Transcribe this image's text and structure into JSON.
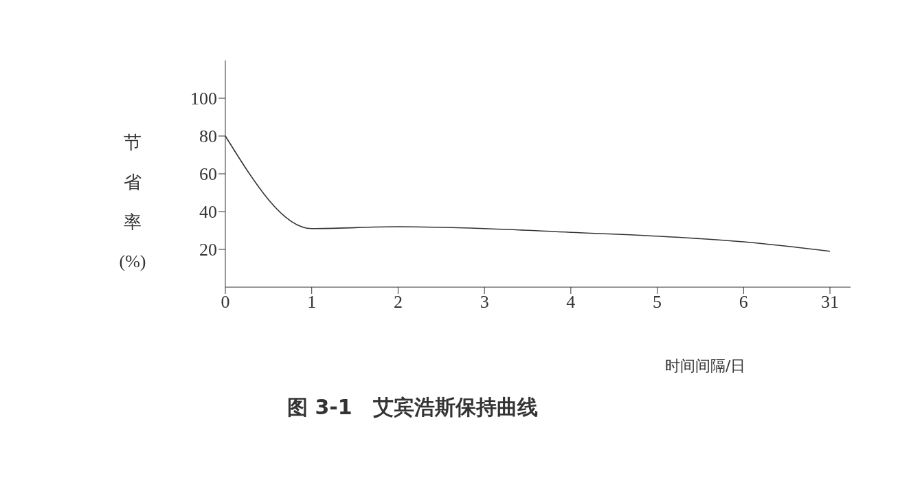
{
  "chart_data": {
    "type": "line",
    "title": "图 3-1　艾宾浩斯保持曲线",
    "xlabel": "时间间隔/日",
    "ylabel": "节省率 (%)",
    "categories": [
      "0",
      "1",
      "2",
      "3",
      "4",
      "5",
      "6",
      "31"
    ],
    "series": [
      {
        "color": "#333333",
        "values": [
          80,
          31,
          32,
          31,
          29,
          27,
          24,
          19
        ]
      }
    ],
    "ylim": [
      0,
      120
    ],
    "yticks": [
      20,
      40,
      60,
      80,
      100
    ],
    "grid": false,
    "marker": "none",
    "line_style": "solid"
  }
}
